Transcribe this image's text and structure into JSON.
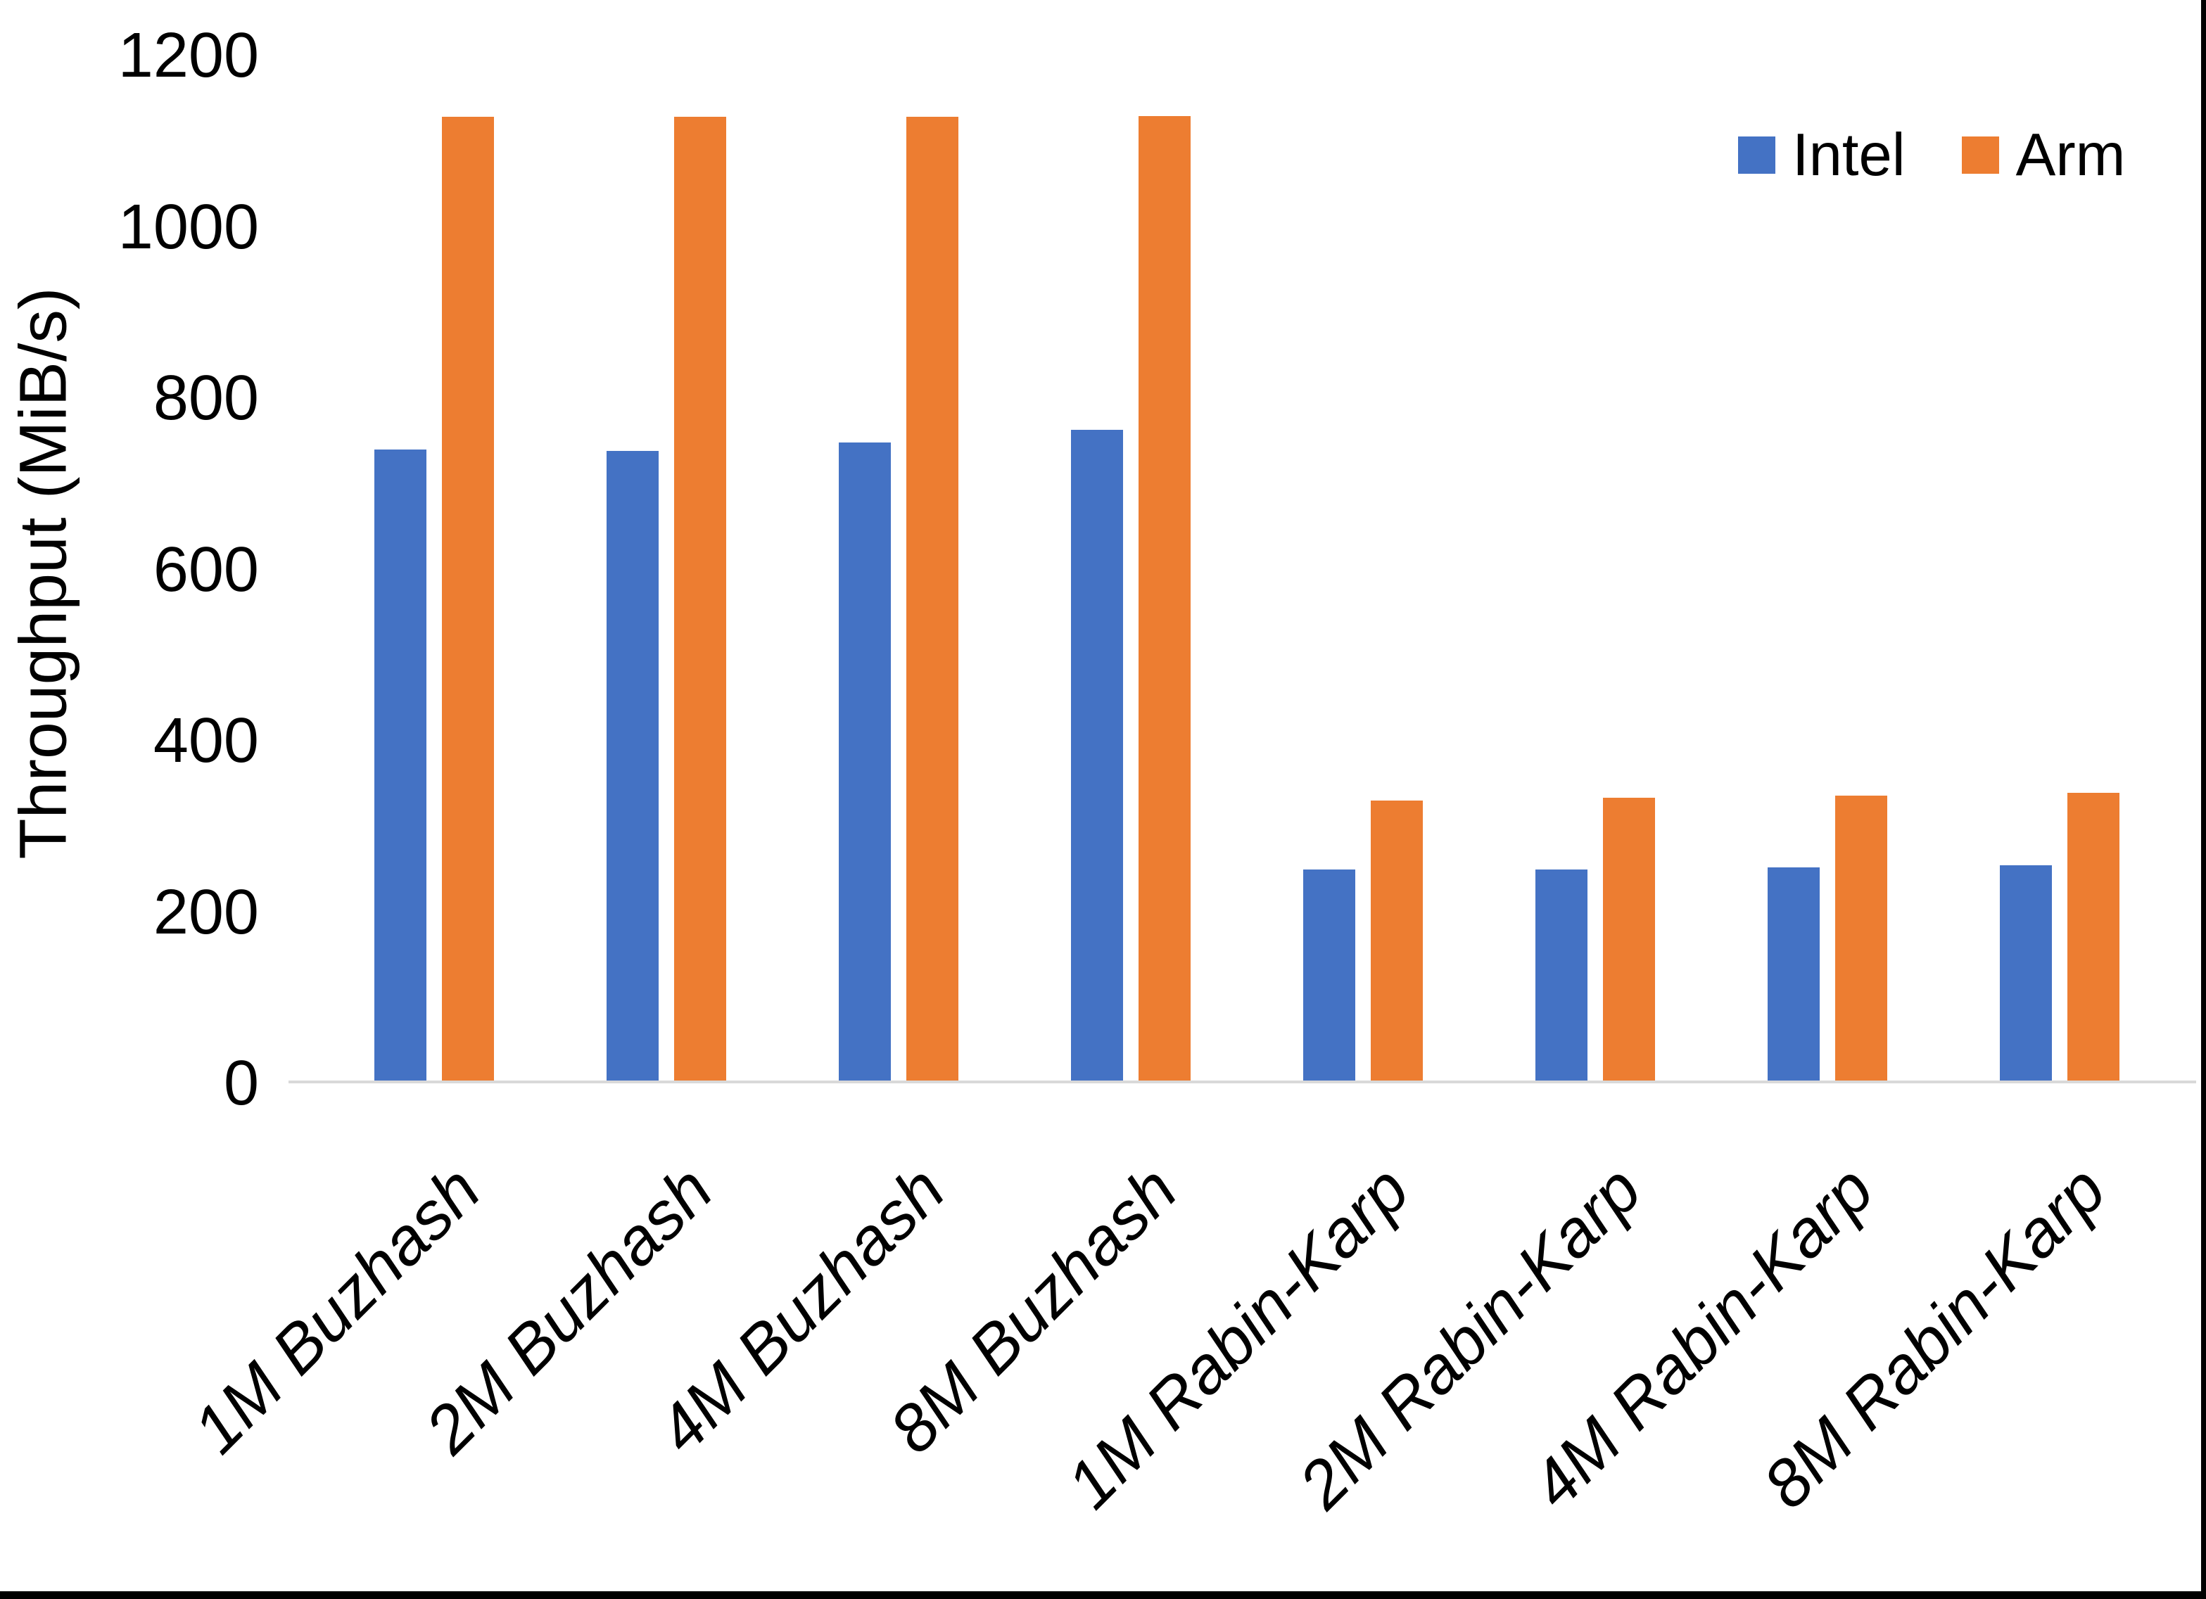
{
  "chart_data": {
    "type": "bar",
    "title": "",
    "categories": [
      "1M Buzhash",
      "2M Buzhash",
      "4M Buzhash",
      "8M Buzhash",
      "1M Rabin-Karp",
      "2M Rabin-Karp",
      "4M Rabin-Karp",
      "8M Rabin-Karp"
    ],
    "series": [
      {
        "name": "Intel",
        "color": "#4472C4",
        "values": [
          737,
          735,
          745,
          760,
          246,
          246,
          249,
          251
        ]
      },
      {
        "name": "Arm",
        "color": "#ED7D31",
        "values": [
          1125,
          1125,
          1125,
          1126,
          327,
          330,
          333,
          336
        ]
      }
    ],
    "xlabel": "",
    "ylabel": "Throughput (MiB/s)",
    "ylim": [
      0,
      1200
    ],
    "ytick_step": 200,
    "ytick_labels": [
      "0",
      "200",
      "400",
      "600",
      "800",
      "1000",
      "1200"
    ],
    "grid": false,
    "legend_position": "top-right"
  },
  "legend": {
    "items": [
      {
        "label": "Intel",
        "color": "#4472C4"
      },
      {
        "label": "Arm",
        "color": "#ED7D31"
      }
    ]
  },
  "colors": {
    "background": "#FFFFFF",
    "text": "#000000",
    "axis_line": "#D9D9D9",
    "frame": "#000000"
  }
}
